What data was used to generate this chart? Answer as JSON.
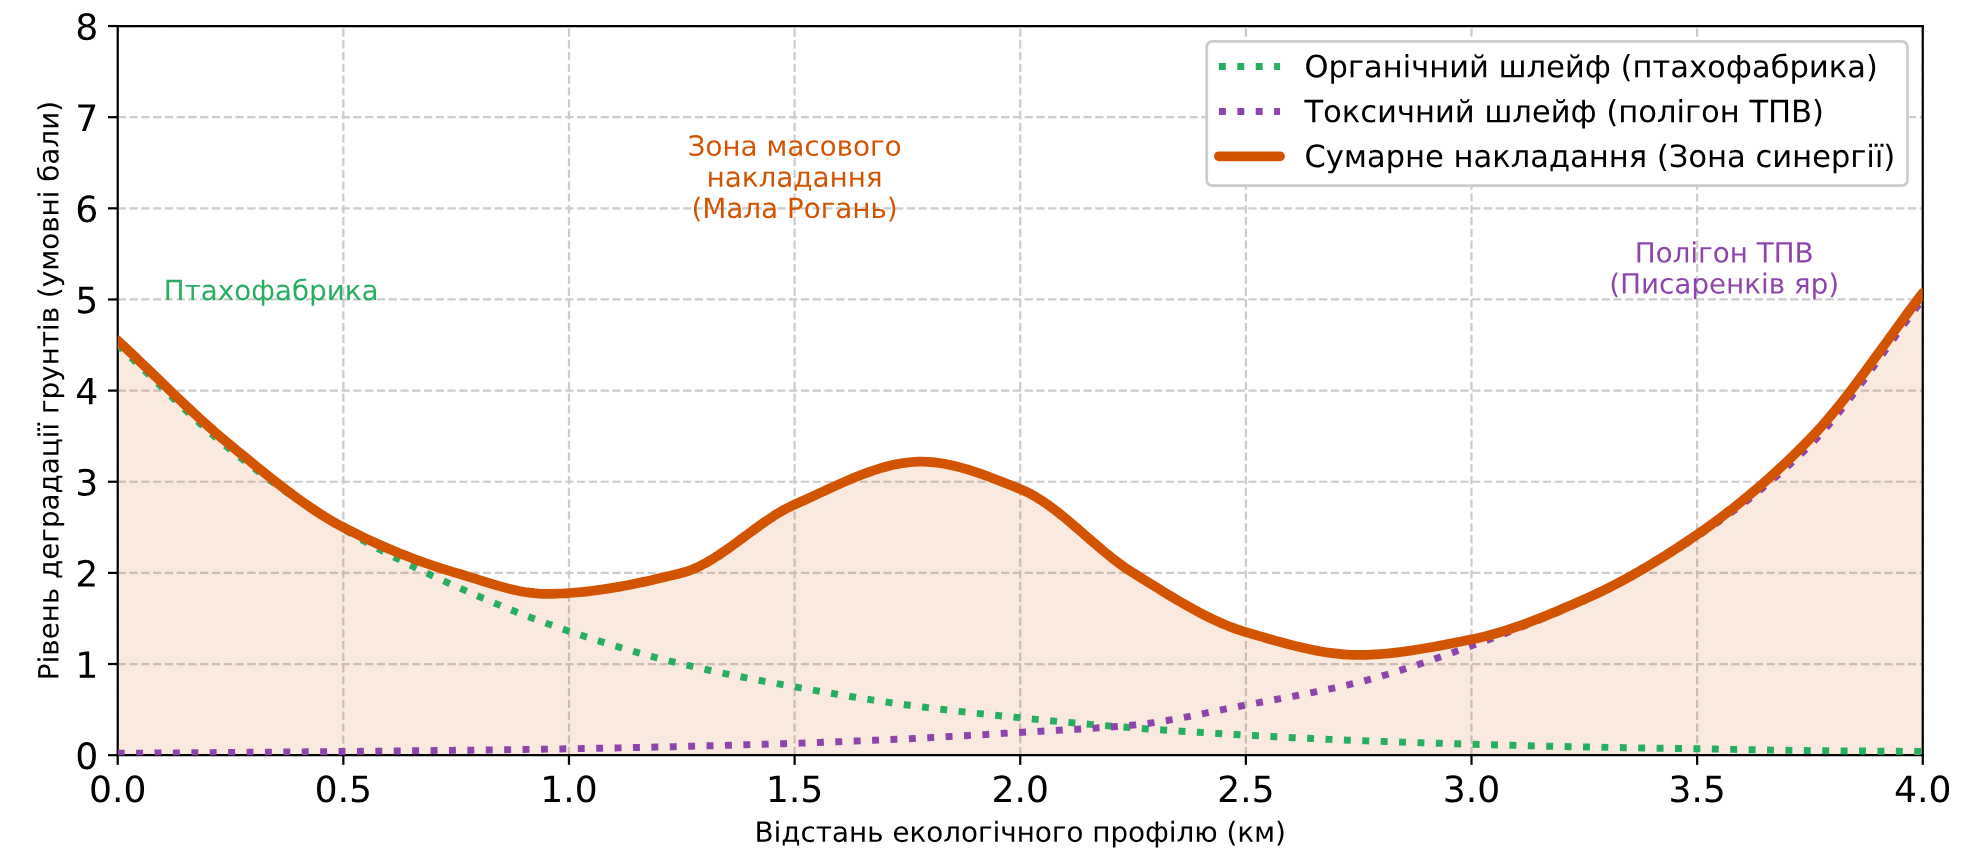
{
  "chart_data": {
    "type": "line",
    "xlabel": "Відстань екологічного профілю (км)",
    "ylabel": "Рівень деградації грунтів (умовні бали)",
    "xlim": [
      0.0,
      4.0
    ],
    "ylim": [
      0,
      8
    ],
    "xticks": [
      {
        "value": 0,
        "label": "0.0"
      },
      0.5,
      {
        "value": 1,
        "label": "1.0"
      },
      1.5,
      {
        "value": 2,
        "label": "2.0"
      },
      2.5,
      {
        "value": 3,
        "label": "3.0"
      },
      3.5,
      {
        "value": 4,
        "label": "4.0"
      }
    ],
    "yticks": [
      0,
      1,
      2,
      3,
      4,
      5,
      6,
      7,
      8
    ],
    "grid": true,
    "legend": "top right",
    "series": [
      {
        "name": "Органічний шлейф (птахофабрика)",
        "line_style": "dotted",
        "color": "#27ae60",
        "x": [
          0,
          0.25,
          0.5,
          0.75,
          1.0,
          1.25,
          1.5,
          1.75,
          2.0,
          2.25,
          2.5,
          2.75,
          3.0,
          3.25,
          3.5,
          3.75,
          4.0
        ],
        "values": [
          4.5,
          3.35,
          2.48,
          1.85,
          1.36,
          1.0,
          0.75,
          0.55,
          0.41,
          0.3,
          0.22,
          0.16,
          0.12,
          0.09,
          0.07,
          0.05,
          0.04
        ]
      },
      {
        "name": "Токсичний шлейф (полігон ТПВ)",
        "line_style": "dotted",
        "color": "#8e44ad",
        "x": [
          0,
          0.5,
          1.0,
          1.5,
          1.75,
          2.0,
          2.25,
          2.5,
          2.75,
          3.0,
          3.25,
          3.5,
          3.75,
          4.0
        ],
        "values": [
          0.02,
          0.04,
          0.07,
          0.13,
          0.18,
          0.25,
          0.33,
          0.55,
          0.8,
          1.2,
          1.7,
          2.4,
          3.4,
          5.0
        ]
      },
      {
        "name": "Сумарне накладання (Зона синергії)",
        "type": "area",
        "line_style": "solid",
        "color": "#d35400",
        "x": [
          0,
          0.25,
          0.5,
          0.75,
          0.95,
          1.25,
          1.5,
          1.78,
          2.0,
          2.25,
          2.5,
          2.75,
          3.0,
          3.25,
          3.5,
          3.75,
          4.0
        ],
        "values": [
          4.55,
          3.4,
          2.5,
          2.0,
          1.77,
          2.0,
          2.75,
          3.22,
          2.92,
          2.0,
          1.35,
          1.1,
          1.27,
          1.71,
          2.42,
          3.47,
          5.07
        ]
      }
    ],
    "annotations": [
      "Птахофабрика",
      "Полігон ТПВ\n(Писаренків яр)",
      "Зона масового\nнакладання\n(Мала Рогань)"
    ]
  }
}
